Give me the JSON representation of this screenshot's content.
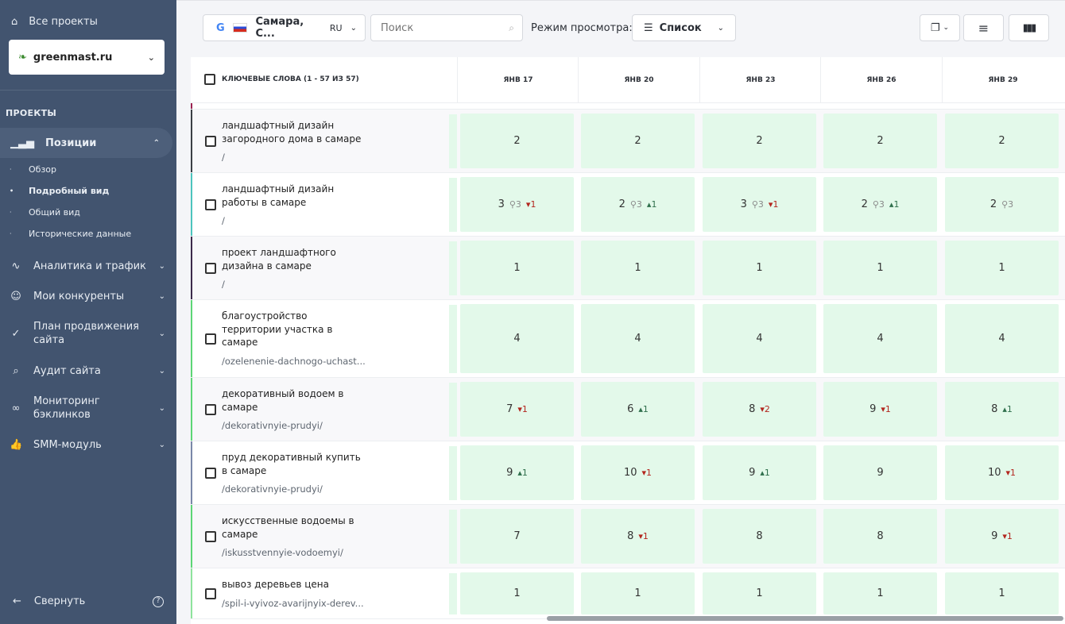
{
  "sidebar": {
    "all_projects": "Все проекты",
    "project": "greenmast.ru",
    "section": "ПРОЕКТЫ",
    "active": "Позиции",
    "subitems": [
      "Обзор",
      "Подробный вид",
      "Общий вид",
      "Исторические данные"
    ],
    "items": [
      {
        "label": "Аналитика и трафик",
        "icon": "pulse-icon"
      },
      {
        "label": "Мои конкуренты",
        "icon": "users-icon"
      },
      {
        "label": "План продвижения сайта",
        "icon": "checklist-icon"
      },
      {
        "label": "Аудит сайта",
        "icon": "audit-icon"
      },
      {
        "label": "Мониторинг бэклинков",
        "icon": "link-icon"
      },
      {
        "label": "SMM-модуль",
        "icon": "thumbs-up-icon"
      }
    ],
    "collapse": "Свернуть"
  },
  "toolbar": {
    "region": "Самара, С...",
    "lang": "RU",
    "search_placeholder": "Поиск",
    "view_mode_label": "Режим просмотра:",
    "view_mode": "Список"
  },
  "table": {
    "keywords_header": "КЛЮЧЕВЫЕ СЛОВА (1 - 57 ИЗ 57)",
    "dates": [
      "ЯНВ 17",
      "ЯНВ 20",
      "ЯНВ 23",
      "ЯНВ 26",
      "ЯНВ 29"
    ],
    "colors": {
      "up": "#2f6f4c",
      "down": "#b3261e",
      "cell": "#e3f9ea"
    },
    "rows": [
      {
        "keyword": "ландшафтный дизайн загородного дома в самаре",
        "url": "/",
        "color": "#3a3f44",
        "cells": [
          {
            "v": "2"
          },
          {
            "v": "2"
          },
          {
            "v": "2"
          },
          {
            "v": "2"
          },
          {
            "v": "2"
          }
        ]
      },
      {
        "keyword": "ландшафтный дизайн работы в самаре",
        "url": "/",
        "color": "#4cc4bd",
        "cells": [
          {
            "v": "3",
            "pin": "3",
            "dir": "down",
            "d": "1"
          },
          {
            "v": "2",
            "pin": "3",
            "dir": "up",
            "d": "1"
          },
          {
            "v": "3",
            "pin": "3",
            "dir": "down",
            "d": "1"
          },
          {
            "v": "2",
            "pin": "3",
            "dir": "up",
            "d": "1"
          },
          {
            "v": "2",
            "pin": "3"
          }
        ]
      },
      {
        "keyword": "проект ландшафтного дизайна в самаре",
        "url": "/",
        "color": "#3b2a4a",
        "cells": [
          {
            "v": "1"
          },
          {
            "v": "1"
          },
          {
            "v": "1"
          },
          {
            "v": "1"
          },
          {
            "v": "1"
          }
        ]
      },
      {
        "keyword": "благоустройство территории участка в самаре",
        "url": "/ozelenenie-dachnogo-uchast...",
        "color": "#5cd675",
        "cells": [
          {
            "v": "4"
          },
          {
            "v": "4"
          },
          {
            "v": "4"
          },
          {
            "v": "4"
          },
          {
            "v": "4"
          }
        ]
      },
      {
        "keyword": "декоративный водоем в самаре",
        "url": "/dekorativnyie-prudyi/",
        "color": "#5cd675",
        "cells": [
          {
            "v": "7",
            "dir": "down",
            "d": "1"
          },
          {
            "v": "6",
            "dir": "up",
            "d": "1"
          },
          {
            "v": "8",
            "dir": "down",
            "d": "2"
          },
          {
            "v": "9",
            "dir": "down",
            "d": "1"
          },
          {
            "v": "8",
            "dir": "up",
            "d": "1"
          }
        ]
      },
      {
        "keyword": "пруд декоративный купить в самаре",
        "url": "/dekorativnyie-prudyi/",
        "color": "#7a87a8",
        "cells": [
          {
            "v": "9",
            "dir": "up",
            "d": "1"
          },
          {
            "v": "10",
            "dir": "down",
            "d": "1"
          },
          {
            "v": "9",
            "dir": "up",
            "d": "1"
          },
          {
            "v": "9"
          },
          {
            "v": "10",
            "dir": "down",
            "d": "1"
          }
        ]
      },
      {
        "keyword": "искусственные водоемы в самаре",
        "url": "/iskusstvennyie-vodoemyi/",
        "color": "#5cd675",
        "cells": [
          {
            "v": "7"
          },
          {
            "v": "8",
            "dir": "down",
            "d": "1"
          },
          {
            "v": "8"
          },
          {
            "v": "8"
          },
          {
            "v": "9",
            "dir": "down",
            "d": "1"
          }
        ]
      },
      {
        "keyword": "вывоз деревьев цена",
        "url": "/spil-i-vyivoz-avarijnyix-derev...",
        "color": "#8ee39c",
        "cells": [
          {
            "v": "1"
          },
          {
            "v": "1"
          },
          {
            "v": "1"
          },
          {
            "v": "1"
          },
          {
            "v": "1"
          }
        ]
      }
    ]
  }
}
